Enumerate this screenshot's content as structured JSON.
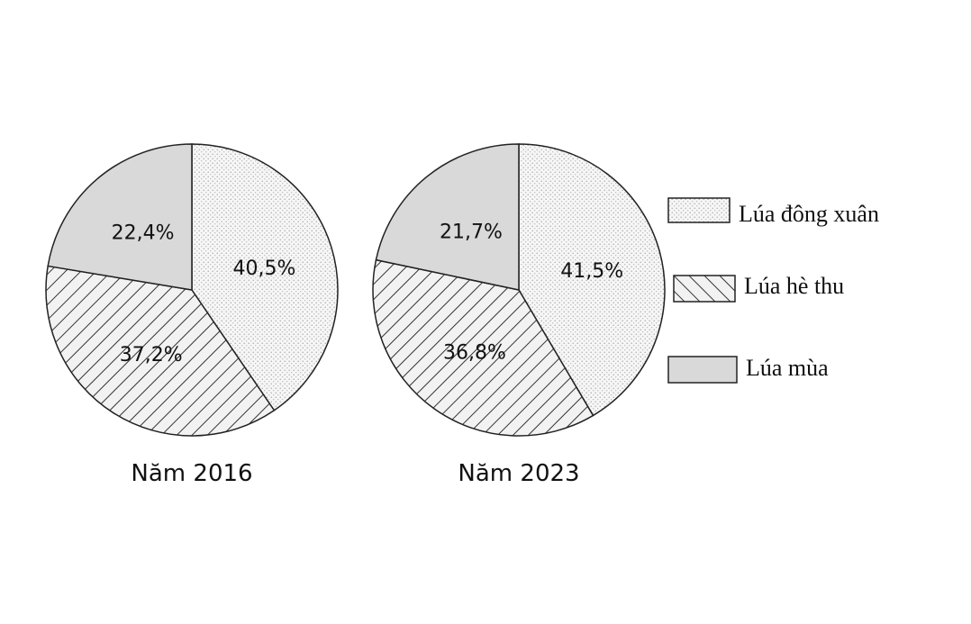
{
  "chart_data": [
    {
      "type": "pie",
      "title": "Năm 2016",
      "categories": [
        "Lúa đông xuân",
        "Lúa hè thu",
        "Lúa mùa"
      ],
      "values": [
        40.5,
        37.2,
        22.4
      ],
      "labels": [
        "40,5%",
        "37,2%",
        "22,4%"
      ]
    },
    {
      "type": "pie",
      "title": "Năm 2023",
      "categories": [
        "Lúa đông xuân",
        "Lúa hè thu",
        "Lúa mùa"
      ],
      "values": [
        41.5,
        36.8,
        21.7
      ],
      "labels": [
        "41,5%",
        "36,8%",
        "21,7%"
      ]
    }
  ],
  "legend": {
    "placement": "right",
    "items": [
      {
        "label": "Lúa đông xuân",
        "fill": "dots"
      },
      {
        "label": "Lúa hè thu",
        "fill": "diagonal-hatch"
      },
      {
        "label": "Lúa mùa",
        "fill": "#d9d9d9"
      }
    ]
  },
  "colors": {
    "outline": "#222222",
    "lua_mua": "#d9d9d9"
  }
}
